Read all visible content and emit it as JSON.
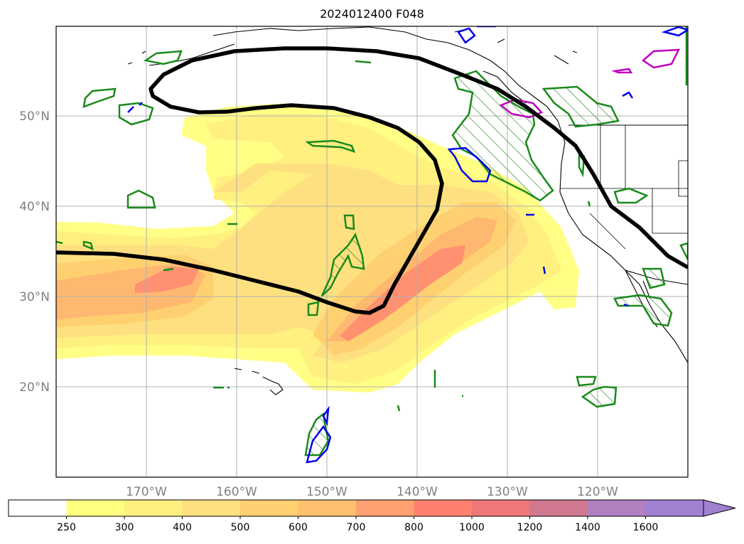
{
  "title": "2024012400 F048",
  "map": {
    "lat_labels": [
      {
        "lat": 50,
        "label": "50°N"
      },
      {
        "lat": 40,
        "label": "40°N"
      },
      {
        "lat": 30,
        "label": "30°N"
      },
      {
        "lat": 20,
        "label": "20°N"
      }
    ],
    "lon_labels": [
      {
        "lon": -170,
        "label": "170°W"
      },
      {
        "lon": -160,
        "label": "160°W"
      },
      {
        "lon": -150,
        "label": "150°W"
      },
      {
        "lon": -140,
        "label": "140°W"
      },
      {
        "lon": -130,
        "label": "130°W"
      },
      {
        "lon": -120,
        "label": "120°W"
      }
    ],
    "lon_range": [
      -180,
      -110
    ],
    "lat_range": [
      10,
      60
    ],
    "grid": true,
    "label_color": "#808080"
  },
  "colorbar": {
    "levels": [
      "250",
      "300",
      "400",
      "500",
      "600",
      "700",
      "800",
      "1000",
      "1200",
      "1400",
      "1600"
    ],
    "colors": [
      "#ffffff",
      "#ffff80",
      "#fff080",
      "#ffe080",
      "#ffd070",
      "#ffc070",
      "#ffa070",
      "#ff8070",
      "#ee7878",
      "#d07890",
      "#b080c0",
      "#a080d0"
    ],
    "extend": "max"
  },
  "legend_colors": {
    "contour_line": "#000000",
    "green_outline": "#008000",
    "blue_outline": "#0000ff",
    "magenta_outline": "#c000c0"
  }
}
